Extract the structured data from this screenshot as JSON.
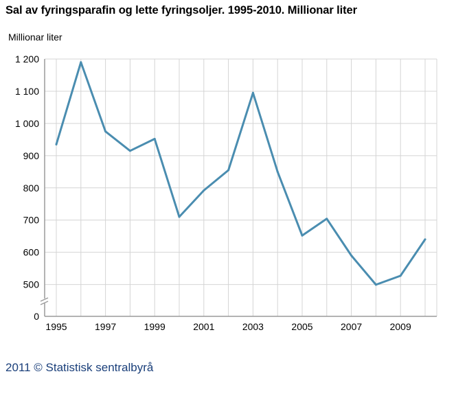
{
  "title": "Sal av fyringsparafin og lette fyringsoljer. 1995-2010. Millionar liter",
  "footer": "2011 © Statistisk sentralbyrå",
  "colors": {
    "line": "#4a8db0",
    "grid": "#d4d4d4",
    "axis": "#9a9a9a"
  },
  "chart_data": {
    "type": "line",
    "title": "Sal av fyringsparafin og lette fyringsoljer. 1995-2010. Millionar liter",
    "ylabel": "Millionar liter",
    "xlabel": "",
    "x": [
      1995,
      1996,
      1997,
      1998,
      1999,
      2000,
      2001,
      2002,
      2003,
      2004,
      2005,
      2006,
      2007,
      2008,
      2009,
      2010
    ],
    "series": [
      {
        "values": [
          935,
          1190,
          975,
          915,
          952,
          710,
          792,
          855,
          1095,
          850,
          652,
          704,
          590,
          497,
          527,
          640
        ]
      }
    ],
    "ylim": [
      0,
      1200
    ],
    "axis_break": true,
    "yticks": [
      0,
      500,
      600,
      700,
      800,
      900,
      1000,
      1100,
      1200
    ],
    "ytick_labels": [
      "0",
      "500",
      "600",
      "700",
      "800",
      "900",
      "1 000",
      "1 100",
      "1 200"
    ],
    "xtick_labels": [
      "1995",
      "1997",
      "1999",
      "2001",
      "2003",
      "2005",
      "2007",
      "2009"
    ],
    "grid": true,
    "legend": "none"
  }
}
